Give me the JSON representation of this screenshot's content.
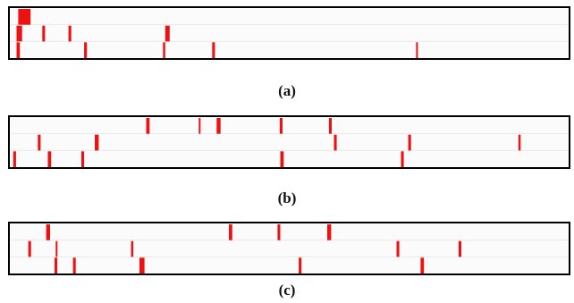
{
  "colors": {
    "mark": "#ee1111",
    "lane": "#e9e9e9",
    "background": "#fbfbfb",
    "border": "#000000"
  },
  "panels": [
    {
      "caption": "(a)",
      "lanes": [
        {
          "marks": [
            {
              "start": 0.015,
              "end": 0.037
            }
          ]
        },
        {
          "marks": [
            {
              "start": 0.012,
              "end": 0.022
            },
            {
              "start": 0.058,
              "end": 0.063
            },
            {
              "start": 0.105,
              "end": 0.11
            },
            {
              "start": 0.278,
              "end": 0.286
            }
          ]
        },
        {
          "marks": [
            {
              "start": 0.012,
              "end": 0.018
            },
            {
              "start": 0.133,
              "end": 0.138
            },
            {
              "start": 0.274,
              "end": 0.278
            },
            {
              "start": 0.362,
              "end": 0.367
            },
            {
              "start": 0.727,
              "end": 0.73
            }
          ]
        }
      ]
    },
    {
      "caption": "(b)",
      "lanes": [
        {
          "marks": [
            {
              "start": 0.244,
              "end": 0.25
            },
            {
              "start": 0.338,
              "end": 0.341
            },
            {
              "start": 0.37,
              "end": 0.377
            },
            {
              "start": 0.483,
              "end": 0.488
            },
            {
              "start": 0.571,
              "end": 0.576
            }
          ]
        },
        {
          "marks": [
            {
              "start": 0.05,
              "end": 0.055
            },
            {
              "start": 0.152,
              "end": 0.159
            },
            {
              "start": 0.58,
              "end": 0.585
            },
            {
              "start": 0.713,
              "end": 0.718
            },
            {
              "start": 0.91,
              "end": 0.914
            }
          ]
        },
        {
          "marks": [
            {
              "start": 0.006,
              "end": 0.011
            },
            {
              "start": 0.068,
              "end": 0.074
            },
            {
              "start": 0.128,
              "end": 0.133
            },
            {
              "start": 0.484,
              "end": 0.49
            },
            {
              "start": 0.7,
              "end": 0.705
            }
          ]
        }
      ]
    },
    {
      "caption": "(c)",
      "lanes": [
        {
          "marks": [
            {
              "start": 0.065,
              "end": 0.072
            },
            {
              "start": 0.392,
              "end": 0.398
            },
            {
              "start": 0.479,
              "end": 0.484
            },
            {
              "start": 0.568,
              "end": 0.575
            }
          ]
        },
        {
          "marks": [
            {
              "start": 0.033,
              "end": 0.038
            },
            {
              "start": 0.082,
              "end": 0.085
            },
            {
              "start": 0.217,
              "end": 0.221
            },
            {
              "start": 0.692,
              "end": 0.697
            },
            {
              "start": 0.803,
              "end": 0.808
            }
          ]
        },
        {
          "marks": [
            {
              "start": 0.08,
              "end": 0.085
            },
            {
              "start": 0.113,
              "end": 0.118
            },
            {
              "start": 0.232,
              "end": 0.241
            },
            {
              "start": 0.517,
              "end": 0.522
            },
            {
              "start": 0.735,
              "end": 0.741
            }
          ]
        }
      ]
    }
  ]
}
